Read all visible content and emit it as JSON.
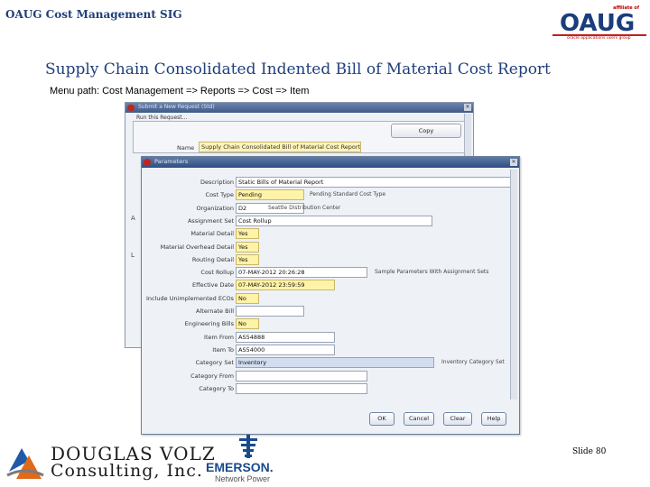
{
  "header": {
    "org_title": "OAUG Cost Management SIG",
    "oaug_logo": {
      "affiliate": "affiliate of",
      "word": "OAUG",
      "tagline": "oracle applications users group"
    }
  },
  "slide": {
    "title": "Supply Chain Consolidated Indented Bill of Material Cost Report",
    "menu_path": "Menu path:  Cost Management => Reports  => Cost => Item",
    "number": "Slide 80"
  },
  "back_window": {
    "title": "Submit a New Request (Std)",
    "run_label": "Run this Request...",
    "copy_button": "Copy",
    "name_label": "Name",
    "name_value": "Supply Chain Consolidated Bill of Material Cost Report",
    "side_labels": [
      "A",
      "L"
    ]
  },
  "params_window": {
    "title": "Parameters",
    "rows": [
      {
        "label": "Description",
        "value": "Static Bills of Material Report",
        "style": "plain",
        "note": ""
      },
      {
        "label": "Cost Type",
        "value": "Pending",
        "style": "req",
        "note": "Pending Standard Cost Type"
      },
      {
        "label": "Organization",
        "value": "D2",
        "style": "plain",
        "note": "Seattle Distribution Center"
      },
      {
        "label": "Assignment Set",
        "value": "Cost Rollup",
        "style": "plain",
        "note": ""
      },
      {
        "label": "Material Detail",
        "value": "Yes",
        "style": "req",
        "note": ""
      },
      {
        "label": "Material Overhead Detail",
        "value": "Yes",
        "style": "req",
        "note": ""
      },
      {
        "label": "Routing Detail",
        "value": "Yes",
        "style": "req",
        "note": ""
      },
      {
        "label": "Cost Rollup",
        "value": "07-MAY-2012 20:26:28",
        "style": "plain",
        "note": "Sample Parameters With Assignment Sets"
      },
      {
        "label": "Effective Date",
        "value": "07-MAY-2012 23:59:59",
        "style": "req",
        "note": ""
      },
      {
        "label": "Include Unimplemented ECOs",
        "value": "No",
        "style": "req",
        "note": ""
      },
      {
        "label": "Alternate Bill",
        "value": "",
        "style": "plain",
        "note": ""
      },
      {
        "label": "Engineering Bills",
        "value": "No",
        "style": "req",
        "note": ""
      },
      {
        "label": "Item From",
        "value": "AS54888",
        "style": "plain",
        "note": ""
      },
      {
        "label": "Item To",
        "value": "AS54000",
        "style": "plain",
        "note": ""
      },
      {
        "label": "Category Set",
        "value": "Inventory",
        "style": "sel",
        "note": "Inventory Category Set"
      },
      {
        "label": "Category From",
        "value": "",
        "style": "plain",
        "note": ""
      },
      {
        "label": "Category To",
        "value": "",
        "style": "plain",
        "note": ""
      }
    ],
    "buttons": {
      "ok": "OK",
      "cancel": "Cancel",
      "clear": "Clear",
      "help": "Help"
    }
  },
  "footer": {
    "douglas_volz": {
      "line1": "DOUGLAS VOLZ",
      "line2": "Consulting, Inc."
    },
    "emerson": {
      "name": "EMERSON.",
      "sub": "Network Power"
    }
  },
  "colors": {
    "title_blue": "#1f3f7a",
    "required_yellow": "#fff3a8",
    "window_titlebar": "#3e5a88"
  }
}
